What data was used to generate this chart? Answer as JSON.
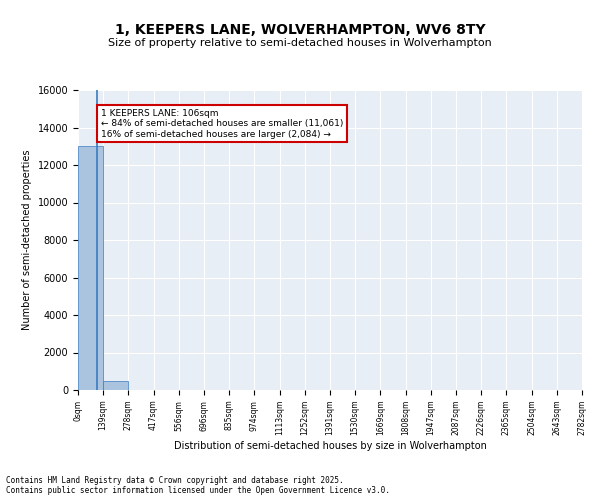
{
  "title": "1, KEEPERS LANE, WOLVERHAMPTON, WV6 8TY",
  "subtitle": "Size of property relative to semi-detached houses in Wolverhampton",
  "xlabel": "Distribution of semi-detached houses by size in Wolverhampton",
  "ylabel": "Number of semi-detached properties",
  "bin_edges": [
    0,
    139,
    278,
    417,
    556,
    696,
    835,
    974,
    1113,
    1252,
    1391,
    1530,
    1669,
    1808,
    1947,
    2087,
    2226,
    2365,
    2504,
    2643,
    2782
  ],
  "bar_heights": [
    13000,
    500,
    0,
    0,
    0,
    0,
    0,
    0,
    0,
    0,
    0,
    0,
    0,
    0,
    0,
    0,
    0,
    0,
    0,
    0
  ],
  "bar_color": "#aac4e0",
  "bar_edge_color": "#3a7abf",
  "property_size": 106,
  "annotation_text": "1 KEEPERS LANE: 106sqm\n← 84% of semi-detached houses are smaller (11,061)\n16% of semi-detached houses are larger (2,084) →",
  "annotation_box_color": "#ffffff",
  "annotation_box_edge": "#cc0000",
  "ylim": [
    0,
    16000
  ],
  "yticks": [
    0,
    2000,
    4000,
    6000,
    8000,
    10000,
    12000,
    14000,
    16000
  ],
  "background_color": "#e8eef5",
  "grid_color": "#ffffff",
  "footer_line1": "Contains HM Land Registry data © Crown copyright and database right 2025.",
  "footer_line2": "Contains public sector information licensed under the Open Government Licence v3.0."
}
